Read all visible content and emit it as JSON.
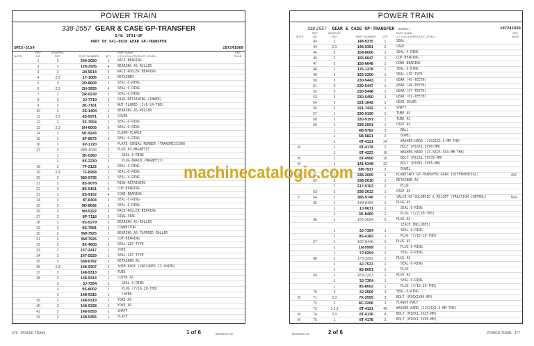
{
  "left": {
    "section": "POWER TRAIN",
    "group_number": "338-2557",
    "group_name": "GEAR & CASE GP-TRANSFER",
    "serial": "S/N: 3T31-UP",
    "part_of": "PART OF 541-8828 GEAR GP-TRANSFER",
    "smcs": "SMCS-3159",
    "doc_id": "i07241869",
    "headers": {
      "note": "NOTE",
      "ref": "REF NO",
      "graphic": "GRAPHIC REF",
      "pn": "PART NUMBER",
      "qty": "QTY",
      "name": "PART NAME",
      "levels": "1 2 3 4 5 6 (PRODUCT LEVEL)",
      "see": "SEE PAGE"
    },
    "rows": [
      [
        "",
        "1",
        "3",
        "240-2020",
        "1",
        "RACE-BEARING",
        0,
        0,
        ""
      ],
      [
        "",
        "2",
        "3",
        "128-3935",
        "4",
        "BEARING AS-ROLLER",
        0,
        0,
        ""
      ],
      [
        "",
        "3",
        "3",
        "1N-5514",
        "4",
        "RACE-ROLLER BEARING",
        0,
        0,
        ""
      ],
      [
        "",
        "4",
        "2,3",
        "1T-1006",
        "3",
        "RETAINER",
        0,
        0,
        ""
      ],
      [
        "",
        "5",
        "3",
        "2D-8009",
        "1",
        "SEAL-O-RING",
        0,
        0,
        ""
      ],
      [
        "",
        "6",
        "2,3",
        "2H-3935",
        "4",
        "SEAL-O-RING",
        0,
        0,
        ""
      ],
      [
        "",
        "7",
        "2",
        "2R-0239",
        "1",
        "SEAL-O-RING",
        0,
        0,
        ""
      ],
      [
        "",
        "8",
        "3",
        "3J-7719",
        "1",
        "RING-RETAINING (INNER)",
        0,
        0,
        ""
      ],
      [
        "",
        "9",
        "3",
        "3K-7161",
        "1",
        "NUT-FLARED (3/8-24-THD)",
        0,
        0,
        ""
      ],
      [
        "",
        "10",
        "3",
        "3S-1404",
        "1",
        "BEARING AS-ROLLER",
        0,
        0,
        ""
      ],
      [
        "",
        "11",
        "2,3",
        "4S-5971",
        "2",
        "COVER",
        0,
        0,
        ""
      ],
      [
        "",
        "12",
        "1",
        "5F-7054",
        "1",
        "SEAL-O-RING",
        0,
        0,
        ""
      ],
      [
        "",
        "13",
        "2,3",
        "5H-6005",
        "6",
        "SEAL-O-RING",
        0,
        0,
        ""
      ],
      [
        "",
        "14",
        "1",
        "5K-9243",
        "7",
        "ELBOW-FLARED",
        0,
        0,
        ""
      ],
      [
        "",
        "15",
        "1",
        "6F-6672",
        "3",
        "SEAL-O-RING",
        0,
        0,
        ""
      ],
      [
        "",
        "16",
        "1",
        "6V-1720",
        "1",
        "PLATE-SERIAL NUMBER (TRANSMISSION)",
        0,
        0,
        ""
      ],
      [
        "",
        "17",
        "1",
        "480-3036",
        "1",
        "PLUG AS-MAGNETIC",
        0,
        1,
        ""
      ],
      [
        "",
        "",
        "1",
        "3K-0360",
        "1",
        "SEAL-O-RING",
        1,
        0,
        ""
      ],
      [
        "",
        "",
        "1",
        "9X-2230",
        "1",
        "PLUG-DRAIN (MAGNETIC)",
        1,
        0,
        ""
      ],
      [
        "",
        "18",
        "2",
        "7F-2122",
        "1",
        "SEAL-O-RING",
        0,
        0,
        ""
      ],
      [
        "",
        "19",
        "2,3",
        "7F-8268",
        "2",
        "SEAL-O-RING",
        0,
        0,
        ""
      ],
      [
        "",
        "20",
        "2",
        "380-9735",
        "1",
        "SEAL-V-RING",
        0,
        0,
        ""
      ],
      [
        "",
        "21",
        "3",
        "8S-9078",
        "1",
        "RING-RETAINING",
        0,
        0,
        ""
      ],
      [
        "",
        "22",
        "3",
        "8S-9151",
        "4",
        "CUP-BEARING",
        0,
        0,
        ""
      ],
      [
        "",
        "23",
        "3",
        "8S-9152",
        "4",
        "CONE-BEARING",
        0,
        0,
        ""
      ],
      [
        "",
        "24",
        "3",
        "8T-6404",
        "1",
        "SEAL-O-RING",
        0,
        0,
        ""
      ],
      [
        "",
        "25",
        "2",
        "9D-8042",
        "1",
        "SEAL-O-RING",
        0,
        0,
        ""
      ],
      [
        "",
        "26",
        "3",
        "9H-5322",
        "2",
        "RACE-ROLLER BEARING",
        0,
        0,
        ""
      ],
      [
        "",
        "27",
        "2",
        "9P-7118",
        "3",
        "RING-SEAL",
        0,
        0,
        ""
      ],
      [
        "",
        "28",
        "3",
        "9S-5279",
        "2",
        "BEARING AS-ROLLER",
        0,
        0,
        ""
      ],
      [
        "",
        "29",
        "3",
        "9S-7581",
        "1",
        "CONNECTOR",
        0,
        0,
        ""
      ],
      [
        "",
        "30",
        "2",
        "9W-7925",
        "1",
        "BEARING AS-TAPERED ROLLER",
        0,
        0,
        ""
      ],
      [
        "",
        "31",
        "2",
        "9W-7926",
        "1",
        "CUP-BEARING",
        0,
        0,
        ""
      ],
      [
        "",
        "32",
        "2",
        "9X-4605",
        "1",
        "SEAL-LIP TYPE",
        0,
        0,
        ""
      ],
      [
        "",
        "33",
        "2",
        "137-2417",
        "1",
        "YOKE",
        0,
        0,
        ""
      ],
      [
        "",
        "34",
        "3",
        "147-5529",
        "1",
        "SEAL-LIP TYPE",
        0,
        0,
        ""
      ],
      [
        "",
        "35",
        "3",
        "508-6782",
        "1",
        "RETAINER AS",
        0,
        0,
        ""
      ],
      [
        "",
        "36",
        "2,3",
        "148-9307",
        "2",
        "SHIM PACK (INCLUDES 13-SHIMS)",
        0,
        0,
        ""
      ],
      [
        "",
        "37",
        "3",
        "148-9313",
        "1",
        "TUBE",
        0,
        0,
        ""
      ],
      [
        "",
        "38",
        "3",
        "148-9314",
        "1",
        "COVER AS",
        0,
        0,
        ""
      ],
      [
        "",
        "",
        "3",
        "3J-7354",
        "1",
        "SEAL-O-RING",
        1,
        0,
        ""
      ],
      [
        "",
        "",
        "3",
        "9S-8002",
        "1",
        "PLUG (7/16-20-THD)",
        1,
        0,
        ""
      ],
      [
        "",
        "",
        "3",
        "148-9315",
        "1",
        "COVER",
        1,
        0,
        ""
      ],
      [
        "",
        "39",
        "2",
        "148-9319",
        "1",
        "YOKE AS",
        0,
        0,
        ""
      ],
      [
        "",
        "40",
        "3",
        "148-9328",
        "1",
        "YOKE AS",
        0,
        0,
        ""
      ],
      [
        "",
        "41",
        "3",
        "148-9353",
        "1",
        "SHAFT",
        0,
        0,
        ""
      ],
      [
        "",
        "42",
        "2",
        "148-9355",
        "1",
        "PLATE",
        0,
        0,
        ""
      ]
    ],
    "footer": {
      "page_no": "476",
      "section": "POWER TRAIN",
      "page_of": "1 of 6",
      "code": "M0090397-00"
    }
  },
  "right": {
    "section": "POWER TRAIN",
    "group_number": "338-2557",
    "group_name": "GEAR & CASE GP-TRANSFER",
    "contd": "(contd.)",
    "doc_id": "i07241869",
    "headers": {
      "note": "NOTE",
      "ref": "REF NO",
      "graphic": "GRAPHIC REF",
      "pn": "PART NUMBER",
      "qty": "QTY",
      "name": "PART NAME",
      "levels": "1 2 3 4 5 6 (PRODUCT LEVEL)",
      "see": "SEE PAGE"
    },
    "rows": [
      [
        "",
        "43",
        "1",
        "148-9375",
        "1",
        "SEAL",
        0,
        0,
        ""
      ],
      [
        "",
        "44",
        "2,3",
        "148-9391",
        "2",
        "CAGE",
        0,
        0,
        ""
      ],
      [
        "",
        "45",
        "3",
        "154-8000",
        "1",
        "SEAL-V-RING",
        0,
        0,
        ""
      ],
      [
        "",
        "46",
        "2",
        "155-6647",
        "1",
        "CUP-BEARING",
        0,
        0,
        ""
      ],
      [
        "",
        "47",
        "2",
        "155-6648",
        "1",
        "CONE-BEARING",
        0,
        0,
        ""
      ],
      [
        "",
        "48",
        "2",
        "176-1378",
        "1",
        "SEAL-O-RING",
        0,
        0,
        ""
      ],
      [
        "",
        "49",
        "2",
        "193-2200",
        "1",
        "SEAL-LIP TYPE",
        0,
        0,
        ""
      ],
      [
        "",
        "50",
        "3",
        "230-5443",
        "1",
        "GEAR (45-TEETH)",
        0,
        0,
        ""
      ],
      [
        "",
        "51",
        "3",
        "230-5447",
        "1",
        "GEAR (48-TEETH)",
        0,
        0,
        ""
      ],
      [
        "",
        "52",
        "3",
        "230-5448",
        "1",
        "GEAR (57-TEETH)",
        0,
        0,
        ""
      ],
      [
        "",
        "53",
        "3",
        "230-5450",
        "1",
        "GEAR (61-TEETH)",
        0,
        0,
        ""
      ],
      [
        "",
        "54",
        "3",
        "321-1642",
        "1",
        "GEAR-IDLER",
        0,
        0,
        ""
      ],
      [
        "",
        "55",
        "2",
        "321-7432",
        "1",
        "SHAFT",
        0,
        0,
        ""
      ],
      [
        "",
        "57",
        "1",
        "330-9190",
        "1",
        "TUBE AS",
        0,
        0,
        ""
      ],
      [
        "",
        "58",
        "1",
        "330-9191",
        "1",
        "TUBE AS",
        0,
        0,
        ""
      ],
      [
        "",
        "60",
        "1",
        "338-2591",
        "1",
        "CASE AS",
        0,
        0,
        ""
      ],
      [
        "",
        "",
        "1",
        "4B-9782",
        "3",
        "BALL",
        1,
        0,
        ""
      ],
      [
        "",
        "",
        "1",
        "5B-5821",
        "2",
        "DOWEL",
        1,
        0,
        ""
      ],
      [
        "",
        "",
        "1",
        "8T-4121",
        "24",
        "WASHER-HARD (11X21X2.5-MM THK)",
        1,
        0,
        ""
      ],
      [
        "M",
        "",
        "1",
        "8T-4178",
        "2",
        "BOLT (M10X1.5X90-MM)",
        1,
        0,
        ""
      ],
      [
        "",
        "",
        "1",
        "8T-4223",
        "16",
        "WASHER-HARD (13.5X25.5X3-MM THK)",
        1,
        0,
        ""
      ],
      [
        "M",
        "",
        "1",
        "8T-4956",
        "16",
        "BOLT (M12X1.75X35-MM)",
        1,
        0,
        ""
      ],
      [
        "M",
        "",
        "1",
        "141-6348",
        "22",
        "BOLT (M10X1.5X65-MM)",
        1,
        0,
        ""
      ],
      [
        "",
        "",
        "1",
        "5M-7937",
        "2",
        "DOWEL",
        1,
        0,
        ""
      ],
      [
        "M",
        "61",
        "1",
        "338-2605",
        "1",
        "PLANETARY GP-TRANSFER GEAR (DIFFERENTIAL)",
        0,
        0,
        "497"
      ],
      [
        "",
        "62",
        "2",
        "338-2610",
        "1",
        "RETAINER AS",
        0,
        0,
        ""
      ],
      [
        "",
        "",
        "2",
        "217-5763",
        "2",
        "PLUG",
        1,
        0,
        ""
      ],
      [
        "",
        "63",
        "2",
        "338-2613",
        "1",
        "CAGE AS",
        0,
        0,
        ""
      ],
      [
        "Y",
        "64",
        "1",
        "386-9746",
        "1",
        "VALVE GP-SOLENOID & RELIEF (TRACTION CONTROL)",
        0,
        0,
        "564"
      ],
      [
        "",
        "65",
        "1",
        "148-8405",
        "1",
        "PLUG AS",
        0,
        1,
        ""
      ],
      [
        "",
        "",
        "1",
        "1J-9671",
        "1",
        "SEAL-O-RING",
        1,
        0,
        ""
      ],
      [
        "",
        "",
        "1",
        "3K-8460",
        "1",
        "PLUG (1/2-20-THD)",
        1,
        0,
        ""
      ],
      [
        "",
        "66",
        "1",
        "155-3624",
        "5",
        "PLUG AS",
        0,
        1,
        ""
      ],
      [
        "",
        "",
        "",
        "",
        "",
        "(EACH INCLUDES)",
        1,
        0,
        ""
      ],
      [
        "",
        "",
        "1",
        "3J-7354",
        "1",
        "SEAL-O-RING",
        1,
        0,
        ""
      ],
      [
        "",
        "",
        "1",
        "9S-4182",
        "1",
        "PLUG (7/16-20-THD)",
        1,
        0,
        ""
      ],
      [
        "",
        "67",
        "1",
        "162-8448",
        "1",
        "PLUG AS",
        0,
        1,
        ""
      ],
      [
        "",
        "",
        "1",
        "1N-5999",
        "1",
        "PLUG-O-RING",
        1,
        0,
        ""
      ],
      [
        "",
        "",
        "1",
        "7J-0204",
        "1",
        "SEAL-O-RING",
        1,
        0,
        ""
      ],
      [
        "",
        "68",
        "1",
        "173-3993",
        "1",
        "PLUG AS",
        0,
        1,
        ""
      ],
      [
        "",
        "",
        "1",
        "4J-7533",
        "1",
        "SEAL-O-RING",
        1,
        0,
        ""
      ],
      [
        "",
        "",
        "1",
        "9S-8001",
        "1",
        "PLUG",
        1,
        0,
        ""
      ],
      [
        "",
        "69",
        "1",
        "183-7263",
        "1",
        "PLUG AS",
        0,
        1,
        ""
      ],
      [
        "",
        "",
        "1",
        "3J-7354",
        "1",
        "SEAL-O-RING",
        1,
        0,
        ""
      ],
      [
        "",
        "",
        "1",
        "9S-8002",
        "1",
        "PLUG (7/16-20-THD)",
        1,
        0,
        ""
      ],
      [
        "",
        "70",
        "3",
        "4J-2506",
        "1",
        "SEAL-O-RING",
        0,
        0,
        ""
      ],
      [
        "M",
        "71",
        "2,3",
        "7X-2555",
        "3",
        "BOLT (M16X2X80-MM)",
        0,
        0,
        ""
      ],
      [
        "",
        "72",
        "2",
        "8C-3206",
        "2",
        "FLANGE-HALF",
        0,
        0,
        ""
      ],
      [
        "",
        "73",
        "1,2,3",
        "8T-4121",
        "49",
        "WASHER-HARD (11X21X2.5-MM THK)",
        0,
        0,
        ""
      ],
      [
        "M",
        "74",
        "2,3",
        "8T-4136",
        "8",
        "BOLT (M10X1.5X25-MM)",
        0,
        0,
        ""
      ],
      [
        "M",
        "75",
        "1",
        "8T-4178",
        "3",
        "BOLT (M10X1.5X90-MM)",
        0,
        0,
        ""
      ]
    ],
    "footer": {
      "code": "M0090397-00",
      "page_of": "2 of 6",
      "section": "POWER TRAIN",
      "page_no": "477"
    }
  },
  "watermark": "machinecatalogic.com",
  "colors": {
    "watermark": "#d4a822",
    "border": "#333333"
  }
}
